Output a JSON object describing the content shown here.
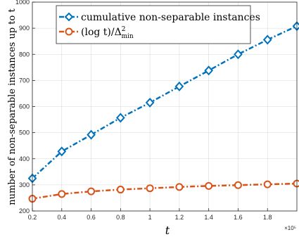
{
  "chart_data": {
    "type": "line",
    "xlabel": "t",
    "ylabel": "number of non-separable instances up to t",
    "x_multiplier": "×10⁵",
    "x": [
      0.2,
      0.4,
      0.6,
      0.8,
      1.0,
      1.2,
      1.4,
      1.6,
      1.8,
      2.0
    ],
    "xlim": [
      0.2,
      2.0
    ],
    "ylim": [
      200,
      1000
    ],
    "xticks": [
      "0.2",
      "0.4",
      "0.6",
      "0.8",
      "1",
      "1.2",
      "1.4",
      "1.6",
      "1.8"
    ],
    "yticks": [
      "200",
      "300",
      "400",
      "500",
      "600",
      "700",
      "800",
      "900",
      "1000"
    ],
    "grid": true,
    "legend_position": "top-left",
    "series": [
      {
        "name": "cumulative non-separable instances",
        "color": "#0072BD",
        "marker": "diamond",
        "values": [
          325,
          428,
          492,
          557,
          615,
          677,
          738,
          800,
          856,
          908
        ]
      },
      {
        "name_parts": {
          "main": "(log t)/Δ",
          "sup": "2",
          "sub": "min"
        },
        "color": "#D95319",
        "marker": "circle",
        "values": [
          247,
          265,
          275,
          282,
          287,
          292,
          296,
          299,
          302,
          305
        ]
      }
    ]
  }
}
